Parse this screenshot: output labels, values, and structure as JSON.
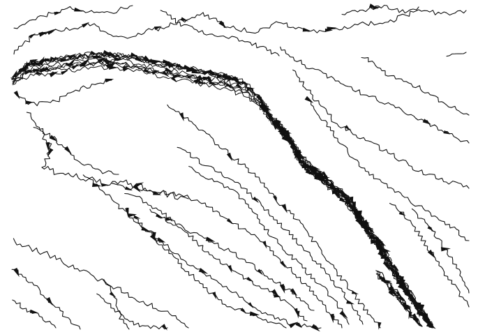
{
  "figure": {
    "background": "#ffffff",
    "stroke_color": "#111111",
    "content": "untitled-trajectory-plot",
    "legend": null,
    "axes": null
  }
}
